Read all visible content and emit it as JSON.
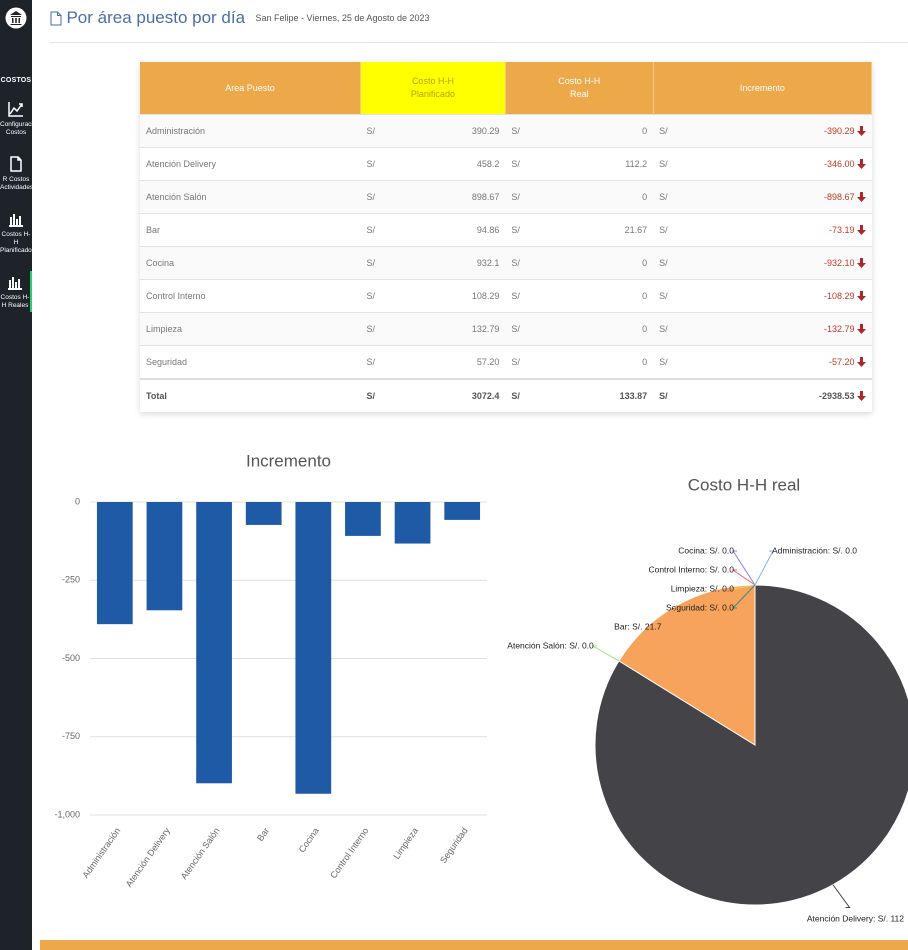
{
  "sidebar": {
    "section": "COSTOS",
    "items": [
      "Configuración Costos",
      "R Costos Actividades",
      "Costos H-H Planificados",
      "Costos H-H Reales"
    ]
  },
  "header": {
    "title": "Por área puesto por día",
    "subtitle": "San Felipe - Viernes, 25 de Agosto de 2023"
  },
  "table": {
    "columns": [
      [
        "Area Puesto"
      ],
      [
        "Costo H-H",
        "Planificado"
      ],
      [
        "Costo H-H",
        "Real"
      ],
      [
        "Incremento"
      ]
    ],
    "currency": "S/",
    "rows": [
      [
        "Administración",
        "390.29",
        "0",
        "-390.29"
      ],
      [
        "Atención Delivery",
        "458.2",
        "112.2",
        "-346.00"
      ],
      [
        "Atención Salón",
        "898.67",
        "0",
        "-898.67"
      ],
      [
        "Bar",
        "94.86",
        "21.67",
        "-73.19"
      ],
      [
        "Cocina",
        "932.1",
        "0",
        "-932.10"
      ],
      [
        "Control Interno",
        "108.29",
        "0",
        "-108.29"
      ],
      [
        "Limpieza",
        "132.79",
        "0",
        "-132.79"
      ],
      [
        "Seguridad",
        "57.20",
        "0",
        "-57.20"
      ]
    ],
    "total": [
      "Total",
      "3072.4",
      "133.87",
      "-2938.53"
    ]
  },
  "chart_data": [
    {
      "type": "bar",
      "title": "Incremento",
      "categories": [
        "Administración",
        "Atención Delivery",
        "Atención Salón",
        "Bar",
        "Cocina",
        "Control Interno",
        "Limpieza",
        "Seguridad"
      ],
      "values": [
        -390.29,
        -346.0,
        -898.67,
        -73.19,
        -932.1,
        -108.29,
        -132.79,
        -57.2
      ],
      "color": "#1f5aa6",
      "ylim": [
        -1000,
        0
      ],
      "yticks": [
        0,
        -250,
        -500,
        -750,
        {
          "value": -1000,
          "label": "-1,000"
        }
      ],
      "grid": true
    },
    {
      "type": "pie",
      "title": "Costo H-H real",
      "categories": [
        "Administración",
        "Atención Delivery",
        "Atención Salón",
        "Bar",
        "Cocina",
        "Control Interno",
        "Limpieza",
        "Seguridad"
      ],
      "values": [
        0,
        112.2,
        0,
        21.67,
        0,
        0,
        0,
        0
      ],
      "value_labels": [
        "Administración: S/. 0.0",
        "Atención Delivery: S/. 112",
        "Atención Salón: S/. 0.0",
        "Bar: S/. 21.7",
        "Cocina: S/. 0.0",
        "Control Interno: S/. 0.0",
        "Limpieza: S/. 0.0",
        "Seguridad: S/. 0.0"
      ],
      "colors": [
        "#7cb5ec",
        "#434348",
        "#90ed7d",
        "#f7a35c",
        "#8085e9",
        "#f15c80",
        "#e4d354",
        "#2b908f"
      ]
    }
  ]
}
